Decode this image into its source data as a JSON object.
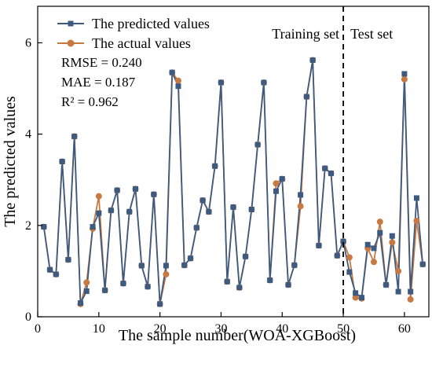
{
  "chart_data": {
    "type": "line",
    "xlabel": "The sample number(WOA-XGBoost)",
    "ylabel": "The predicted values",
    "xlim": [
      0,
      64
    ],
    "ylim": [
      0,
      6.8
    ],
    "x_ticks": [
      0,
      10,
      20,
      30,
      40,
      50,
      60
    ],
    "y_ticks": [
      0,
      2,
      4,
      6
    ],
    "grid": false,
    "legend_position": "top-left",
    "split_x": 50,
    "region_labels": {
      "train": "Training set",
      "test": "Test set"
    },
    "stats": [
      "RMSE = 0.240",
      "MAE = 0.187",
      "R² = 0.962"
    ],
    "x": [
      1,
      2,
      3,
      4,
      5,
      6,
      7,
      8,
      9,
      10,
      11,
      12,
      13,
      14,
      15,
      16,
      17,
      18,
      19,
      20,
      21,
      22,
      23,
      24,
      25,
      26,
      27,
      28,
      29,
      30,
      31,
      32,
      33,
      34,
      35,
      36,
      37,
      38,
      39,
      40,
      41,
      42,
      43,
      44,
      45,
      46,
      47,
      48,
      49,
      50,
      51,
      52,
      53,
      54,
      55,
      56,
      57,
      58,
      59,
      60,
      61,
      62,
      63
    ],
    "series": [
      {
        "name": "The predicted values",
        "color": "#3d5a80",
        "marker": "square",
        "values": [
          1.97,
          1.03,
          0.93,
          3.4,
          1.25,
          3.95,
          0.3,
          0.56,
          1.97,
          2.27,
          0.58,
          2.33,
          2.77,
          0.73,
          2.3,
          2.8,
          1.12,
          0.66,
          2.68,
          0.28,
          1.12,
          5.35,
          5.05,
          1.13,
          1.28,
          1.95,
          2.55,
          2.3,
          3.3,
          5.13,
          0.77,
          2.4,
          0.64,
          1.32,
          2.35,
          3.77,
          5.13,
          0.8,
          2.75,
          3.02,
          0.7,
          1.13,
          2.67,
          4.82,
          5.62,
          1.56,
          3.25,
          3.14,
          1.34,
          1.65,
          0.98,
          0.52,
          0.42,
          1.58,
          1.5,
          1.84,
          0.7,
          1.77,
          0.55,
          5.32,
          0.55,
          2.6,
          1.15
        ]
      },
      {
        "name": "The actual values",
        "color": "#c87941",
        "marker": "circle",
        "values": [
          1.97,
          1.03,
          0.93,
          3.4,
          1.25,
          3.95,
          0.28,
          0.75,
          1.93,
          2.64,
          0.58,
          2.33,
          2.77,
          0.73,
          2.3,
          2.8,
          1.12,
          0.66,
          2.68,
          0.28,
          0.93,
          5.35,
          5.17,
          1.13,
          1.28,
          1.95,
          2.55,
          2.3,
          3.3,
          5.13,
          0.77,
          2.4,
          0.64,
          1.32,
          2.35,
          3.77,
          5.13,
          0.8,
          2.92,
          3.02,
          0.7,
          1.13,
          2.42,
          4.82,
          5.62,
          1.56,
          3.25,
          3.14,
          1.34,
          1.65,
          1.3,
          0.42,
          0.4,
          1.5,
          1.2,
          2.08,
          0.7,
          1.63,
          1.0,
          5.2,
          0.38,
          2.1,
          1.15
        ]
      }
    ]
  }
}
